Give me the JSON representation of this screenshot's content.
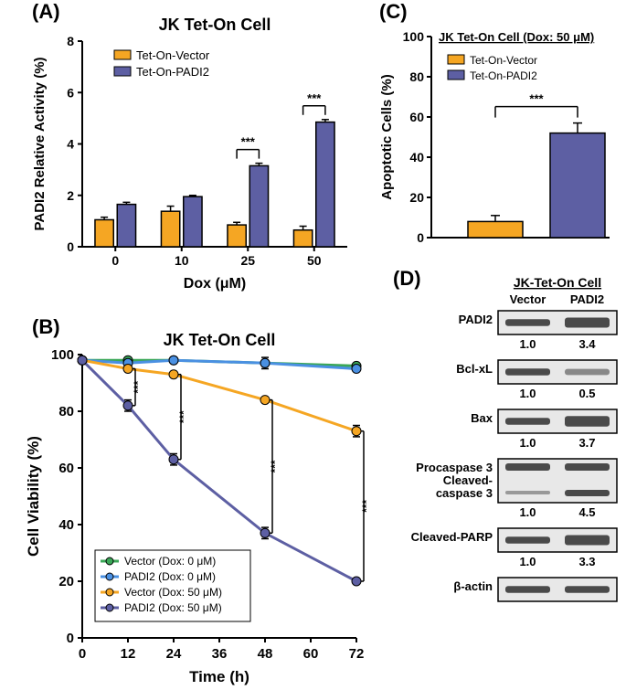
{
  "panelA": {
    "label": "(A)",
    "title": "JK Tet-On Cell",
    "ylabel": "PADI2 Relative Activity (%)",
    "xlabel": "Dox (μM)",
    "categories": [
      "0",
      "10",
      "25",
      "50"
    ],
    "series": [
      {
        "name": "Tet-On-Vector",
        "color": "#f5a623",
        "values": [
          1.05,
          1.38,
          0.85,
          0.65
        ],
        "errors": [
          0.1,
          0.2,
          0.1,
          0.15
        ]
      },
      {
        "name": "Tet-On-PADI2",
        "color": "#5d5fa3",
        "values": [
          1.65,
          1.95,
          3.15,
          4.85
        ],
        "errors": [
          0.08,
          0.05,
          0.1,
          0.1
        ]
      }
    ],
    "ylim": [
      0,
      8
    ],
    "ytick_step": 2,
    "sig": [
      {
        "at": 2,
        "label": "***"
      },
      {
        "at": 3,
        "label": "***"
      }
    ],
    "title_fontsize": 16,
    "label_fontsize": 14,
    "tick_fontsize": 12
  },
  "panelB": {
    "label": "(B)",
    "title": "JK Tet-On Cell",
    "ylabel": "Cell Viability (%)",
    "xlabel": "Time (h)",
    "x": [
      0,
      12,
      24,
      48,
      72
    ],
    "xlim": [
      0,
      72
    ],
    "xtick_step": 12,
    "ylim": [
      0,
      100
    ],
    "ytick_step": 20,
    "series": [
      {
        "name": "Vector (Dox: 0 μM)",
        "color": "#3aa757",
        "values": [
          98,
          98,
          98,
          97,
          96
        ],
        "errors": [
          0,
          0,
          0,
          2,
          1
        ]
      },
      {
        "name": "PADI2 (Dox: 0 μM)",
        "color": "#4a90e2",
        "values": [
          98,
          97,
          98,
          97,
          95
        ],
        "errors": [
          0,
          0,
          0,
          0,
          0
        ]
      },
      {
        "name": "Vector (Dox: 50 μM)",
        "color": "#f5a623",
        "values": [
          98,
          95,
          93,
          84,
          73
        ],
        "errors": [
          0,
          1,
          1,
          1,
          2
        ]
      },
      {
        "name": "PADI2 (Dox: 50 μM)",
        "color": "#5d5fa3",
        "values": [
          98,
          82,
          63,
          37,
          20
        ],
        "errors": [
          0,
          2,
          2,
          2,
          0
        ]
      }
    ],
    "sig": [
      {
        "x": 12,
        "label": "***"
      },
      {
        "x": 24,
        "label": "***"
      },
      {
        "x": 48,
        "label": "***"
      },
      {
        "x": 72,
        "label": "***"
      }
    ]
  },
  "panelC": {
    "label": "(C)",
    "title": "JK Tet-On Cell (Dox: 50 μM)",
    "ylabel": "Apoptotic Cells (%)",
    "series": [
      {
        "name": "Tet-On-Vector",
        "color": "#f5a623",
        "value": 8,
        "error": 3
      },
      {
        "name": "Tet-On-PADI2",
        "color": "#5d5fa3",
        "value": 52,
        "error": 5
      }
    ],
    "ylim": [
      0,
      100
    ],
    "ytick_step": 20,
    "sig_label": "***"
  },
  "panelD": {
    "label": "(D)",
    "header": "JK-Tet-On Cell",
    "columns": [
      "Vector",
      "PADI2"
    ],
    "rows": [
      {
        "label": "PADI2",
        "q": [
          "1.0",
          "3.4"
        ]
      },
      {
        "label": "Bcl-xL",
        "q": [
          "1.0",
          "0.5"
        ]
      },
      {
        "label": "Bax",
        "q": [
          "1.0",
          "3.7"
        ]
      },
      {
        "label": "Procaspase 3\nCleaved-\ncaspase 3",
        "q": [
          "1.0",
          "4.5"
        ],
        "double": true
      },
      {
        "label": "Cleaved-PARP",
        "q": [
          "1.0",
          "3.3"
        ]
      },
      {
        "label": "β-actin",
        "q": null
      }
    ],
    "band_color": "#4a4a4a"
  },
  "colors": {
    "axis": "#000000",
    "text": "#000000"
  }
}
